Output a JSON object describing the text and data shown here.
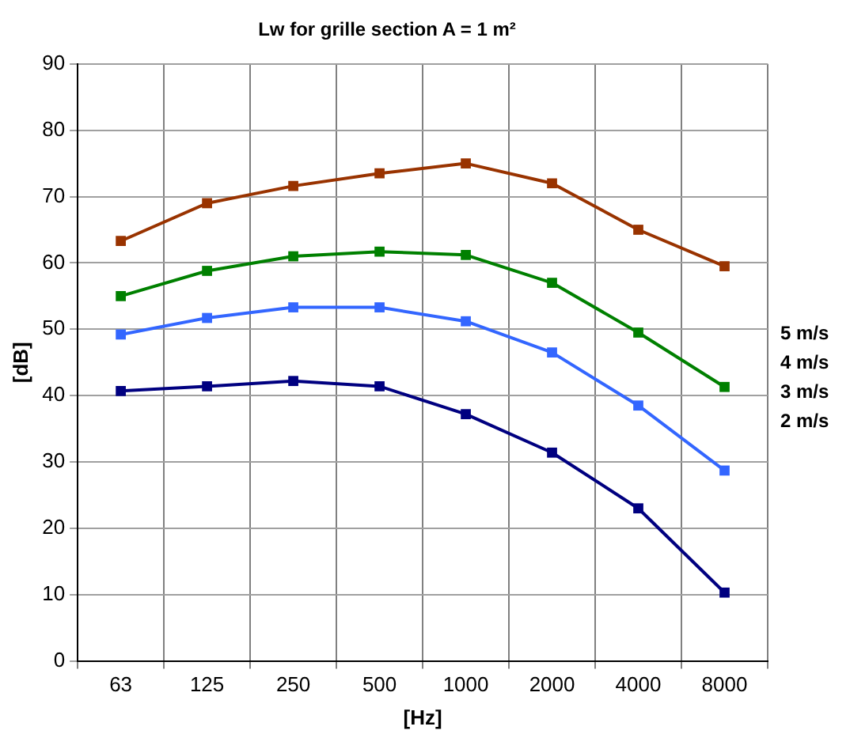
{
  "chart_data": {
    "type": "line",
    "title": "Lw for grille section A = 1 m²",
    "xlabel": "[Hz]",
    "ylabel": "[dB]",
    "categories": [
      "63",
      "125",
      "250",
      "500",
      "1000",
      "2000",
      "4000",
      "8000"
    ],
    "ylim": [
      0,
      90
    ],
    "yticks": [
      0,
      10,
      20,
      30,
      40,
      50,
      60,
      70,
      80,
      90
    ],
    "grid": true,
    "legend": "right",
    "marker": "square",
    "line_style": "solid",
    "series": [
      {
        "name": "5 m/s",
        "color": "#993300",
        "values": [
          63.3,
          69,
          71.6,
          73.5,
          75,
          72,
          65,
          59.5
        ]
      },
      {
        "name": "4 m/s",
        "color": "#008000",
        "values": [
          55,
          58.8,
          61,
          61.7,
          61.2,
          57,
          49.5,
          41.3
        ]
      },
      {
        "name": "3 m/s",
        "color": "#3366ff",
        "values": [
          49.2,
          51.7,
          53.3,
          53.3,
          51.2,
          46.5,
          38.5,
          28.7
        ]
      },
      {
        "name": "2 m/s",
        "color": "#000080",
        "values": [
          40.7,
          41.4,
          42.2,
          41.4,
          37.2,
          31.4,
          23,
          10.3
        ]
      }
    ]
  }
}
